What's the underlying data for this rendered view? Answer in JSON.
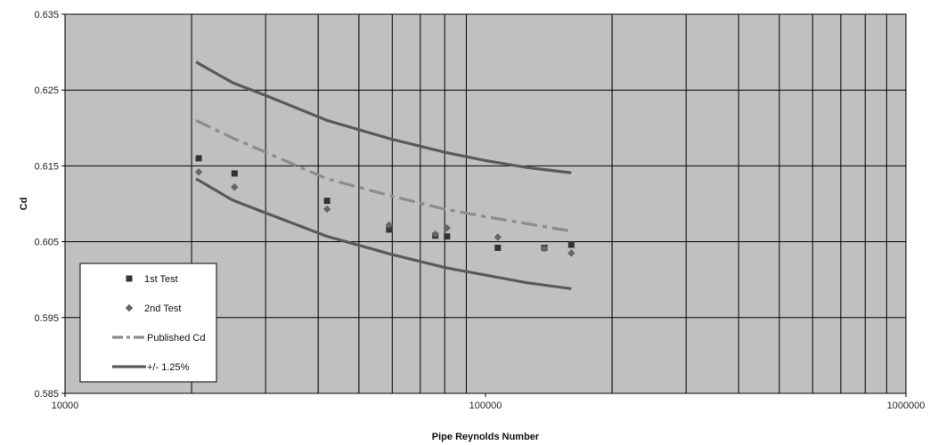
{
  "chart_data": {
    "type": "scatter",
    "xlabel": "Pipe Reynolds Number",
    "ylabel": "Cd",
    "xscale": "log",
    "xlim": [
      10000,
      1000000
    ],
    "ylim": [
      0.585,
      0.635
    ],
    "x_ticks": [
      10000,
      100000,
      1000000
    ],
    "x_tick_labels": [
      "10000",
      "100000",
      "1000000"
    ],
    "y_ticks": [
      0.585,
      0.595,
      0.605,
      0.615,
      0.625,
      0.635
    ],
    "y_tick_labels": [
      "0.585",
      "0.595",
      "0.605",
      "0.615",
      "0.625",
      "0.635"
    ],
    "grid": true,
    "legend_position": "bottom-left",
    "colors": {
      "plot_background": "#c0c0c0",
      "grid": "#000000",
      "marker_1st": "#333333",
      "marker_2nd": "#666666",
      "published": "#8c8c8c",
      "band": "#5a5a5a"
    },
    "series": [
      {
        "name": "1st Test",
        "style": "square-marker",
        "points": [
          [
            20800,
            0.616
          ],
          [
            25300,
            0.614
          ],
          [
            42000,
            0.6104
          ],
          [
            59000,
            0.6066
          ],
          [
            76000,
            0.6058
          ],
          [
            81000,
            0.6057
          ],
          [
            107000,
            0.6042
          ],
          [
            138000,
            0.6042
          ],
          [
            160000,
            0.6046
          ]
        ]
      },
      {
        "name": "2nd Test",
        "style": "diamond-marker",
        "points": [
          [
            20800,
            0.6142
          ],
          [
            25300,
            0.6122
          ],
          [
            42000,
            0.6093
          ],
          [
            59000,
            0.6072
          ],
          [
            76000,
            0.606
          ],
          [
            81000,
            0.6068
          ],
          [
            107000,
            0.6056
          ],
          [
            138000,
            0.6041
          ],
          [
            160000,
            0.6035
          ]
        ]
      },
      {
        "name": "Published Cd",
        "style": "dash-dot-line",
        "points": [
          [
            20500,
            0.621
          ],
          [
            25000,
            0.6187
          ],
          [
            30000,
            0.6168
          ],
          [
            42000,
            0.6133
          ],
          [
            60000,
            0.611
          ],
          [
            80000,
            0.6093
          ],
          [
            100000,
            0.6083
          ],
          [
            125000,
            0.6074
          ],
          [
            160000,
            0.6064
          ]
        ]
      },
      {
        "name": "+/- 1.25%",
        "style": "solid-line",
        "points": [
          [
            20500,
            0.6287
          ],
          [
            25000,
            0.626
          ],
          [
            30000,
            0.6243
          ],
          [
            42000,
            0.621
          ],
          [
            60000,
            0.6185
          ],
          [
            80000,
            0.6168
          ],
          [
            100000,
            0.6157
          ],
          [
            125000,
            0.6148
          ],
          [
            160000,
            0.6141
          ]
        ]
      },
      {
        "name": "",
        "style": "solid-line",
        "legend": false,
        "points": [
          [
            20500,
            0.6133
          ],
          [
            25000,
            0.6105
          ],
          [
            30000,
            0.6088
          ],
          [
            42000,
            0.6057
          ],
          [
            60000,
            0.6033
          ],
          [
            80000,
            0.6016
          ],
          [
            100000,
            0.6006
          ],
          [
            125000,
            0.5996
          ],
          [
            160000,
            0.5988
          ]
        ]
      }
    ]
  }
}
